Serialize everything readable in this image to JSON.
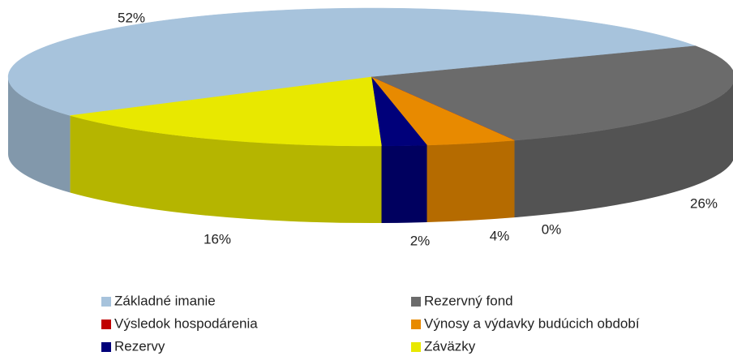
{
  "chart_data": {
    "type": "pie",
    "categories": [
      "Základné imanie",
      "Rezervný fond",
      "Výsledok hospodárenia",
      "Výnosy a výdavky budúcich období",
      "Rezervy",
      "Záväzky"
    ],
    "values": [
      52,
      26,
      0,
      4,
      2,
      16
    ],
    "value_labels": [
      "52%",
      "26%",
      "0%",
      "4%",
      "2%",
      "16%"
    ],
    "colors": [
      "#a7c3dc",
      "#6b6b6b",
      "#c00000",
      "#e88a00",
      "#00007a",
      "#e8e800"
    ]
  }
}
